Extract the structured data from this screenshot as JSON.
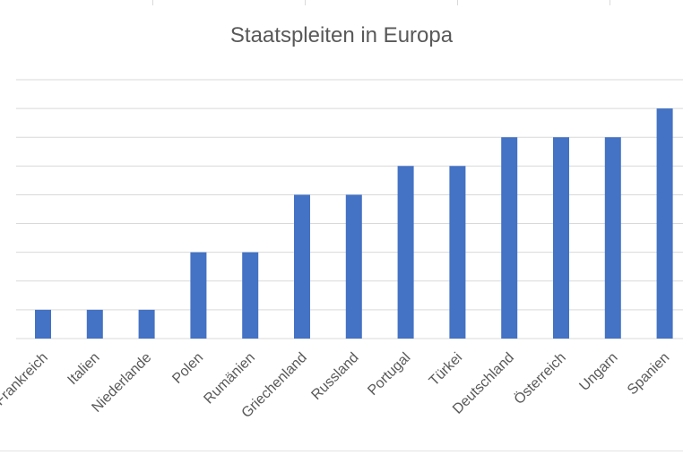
{
  "chart_data": {
    "type": "bar",
    "title": "Staatspleiten in Europa",
    "xlabel": "",
    "ylabel": "",
    "categories": [
      "Frankreich",
      "Italien",
      "Niederlande",
      "Polen",
      "Rumänien",
      "Griechenland",
      "Russland",
      "Portugal",
      "Türkei",
      "Deutschland",
      "Österreich",
      "Ungarn",
      "Spanien"
    ],
    "values": [
      1,
      1,
      1,
      3,
      3,
      5,
      5,
      6,
      6,
      7,
      7,
      7,
      8
    ],
    "ylim": [
      0,
      9
    ],
    "grid": true,
    "legend": "none",
    "bar_color": "#4472c4",
    "gridline_color": "#d9d9d9"
  }
}
